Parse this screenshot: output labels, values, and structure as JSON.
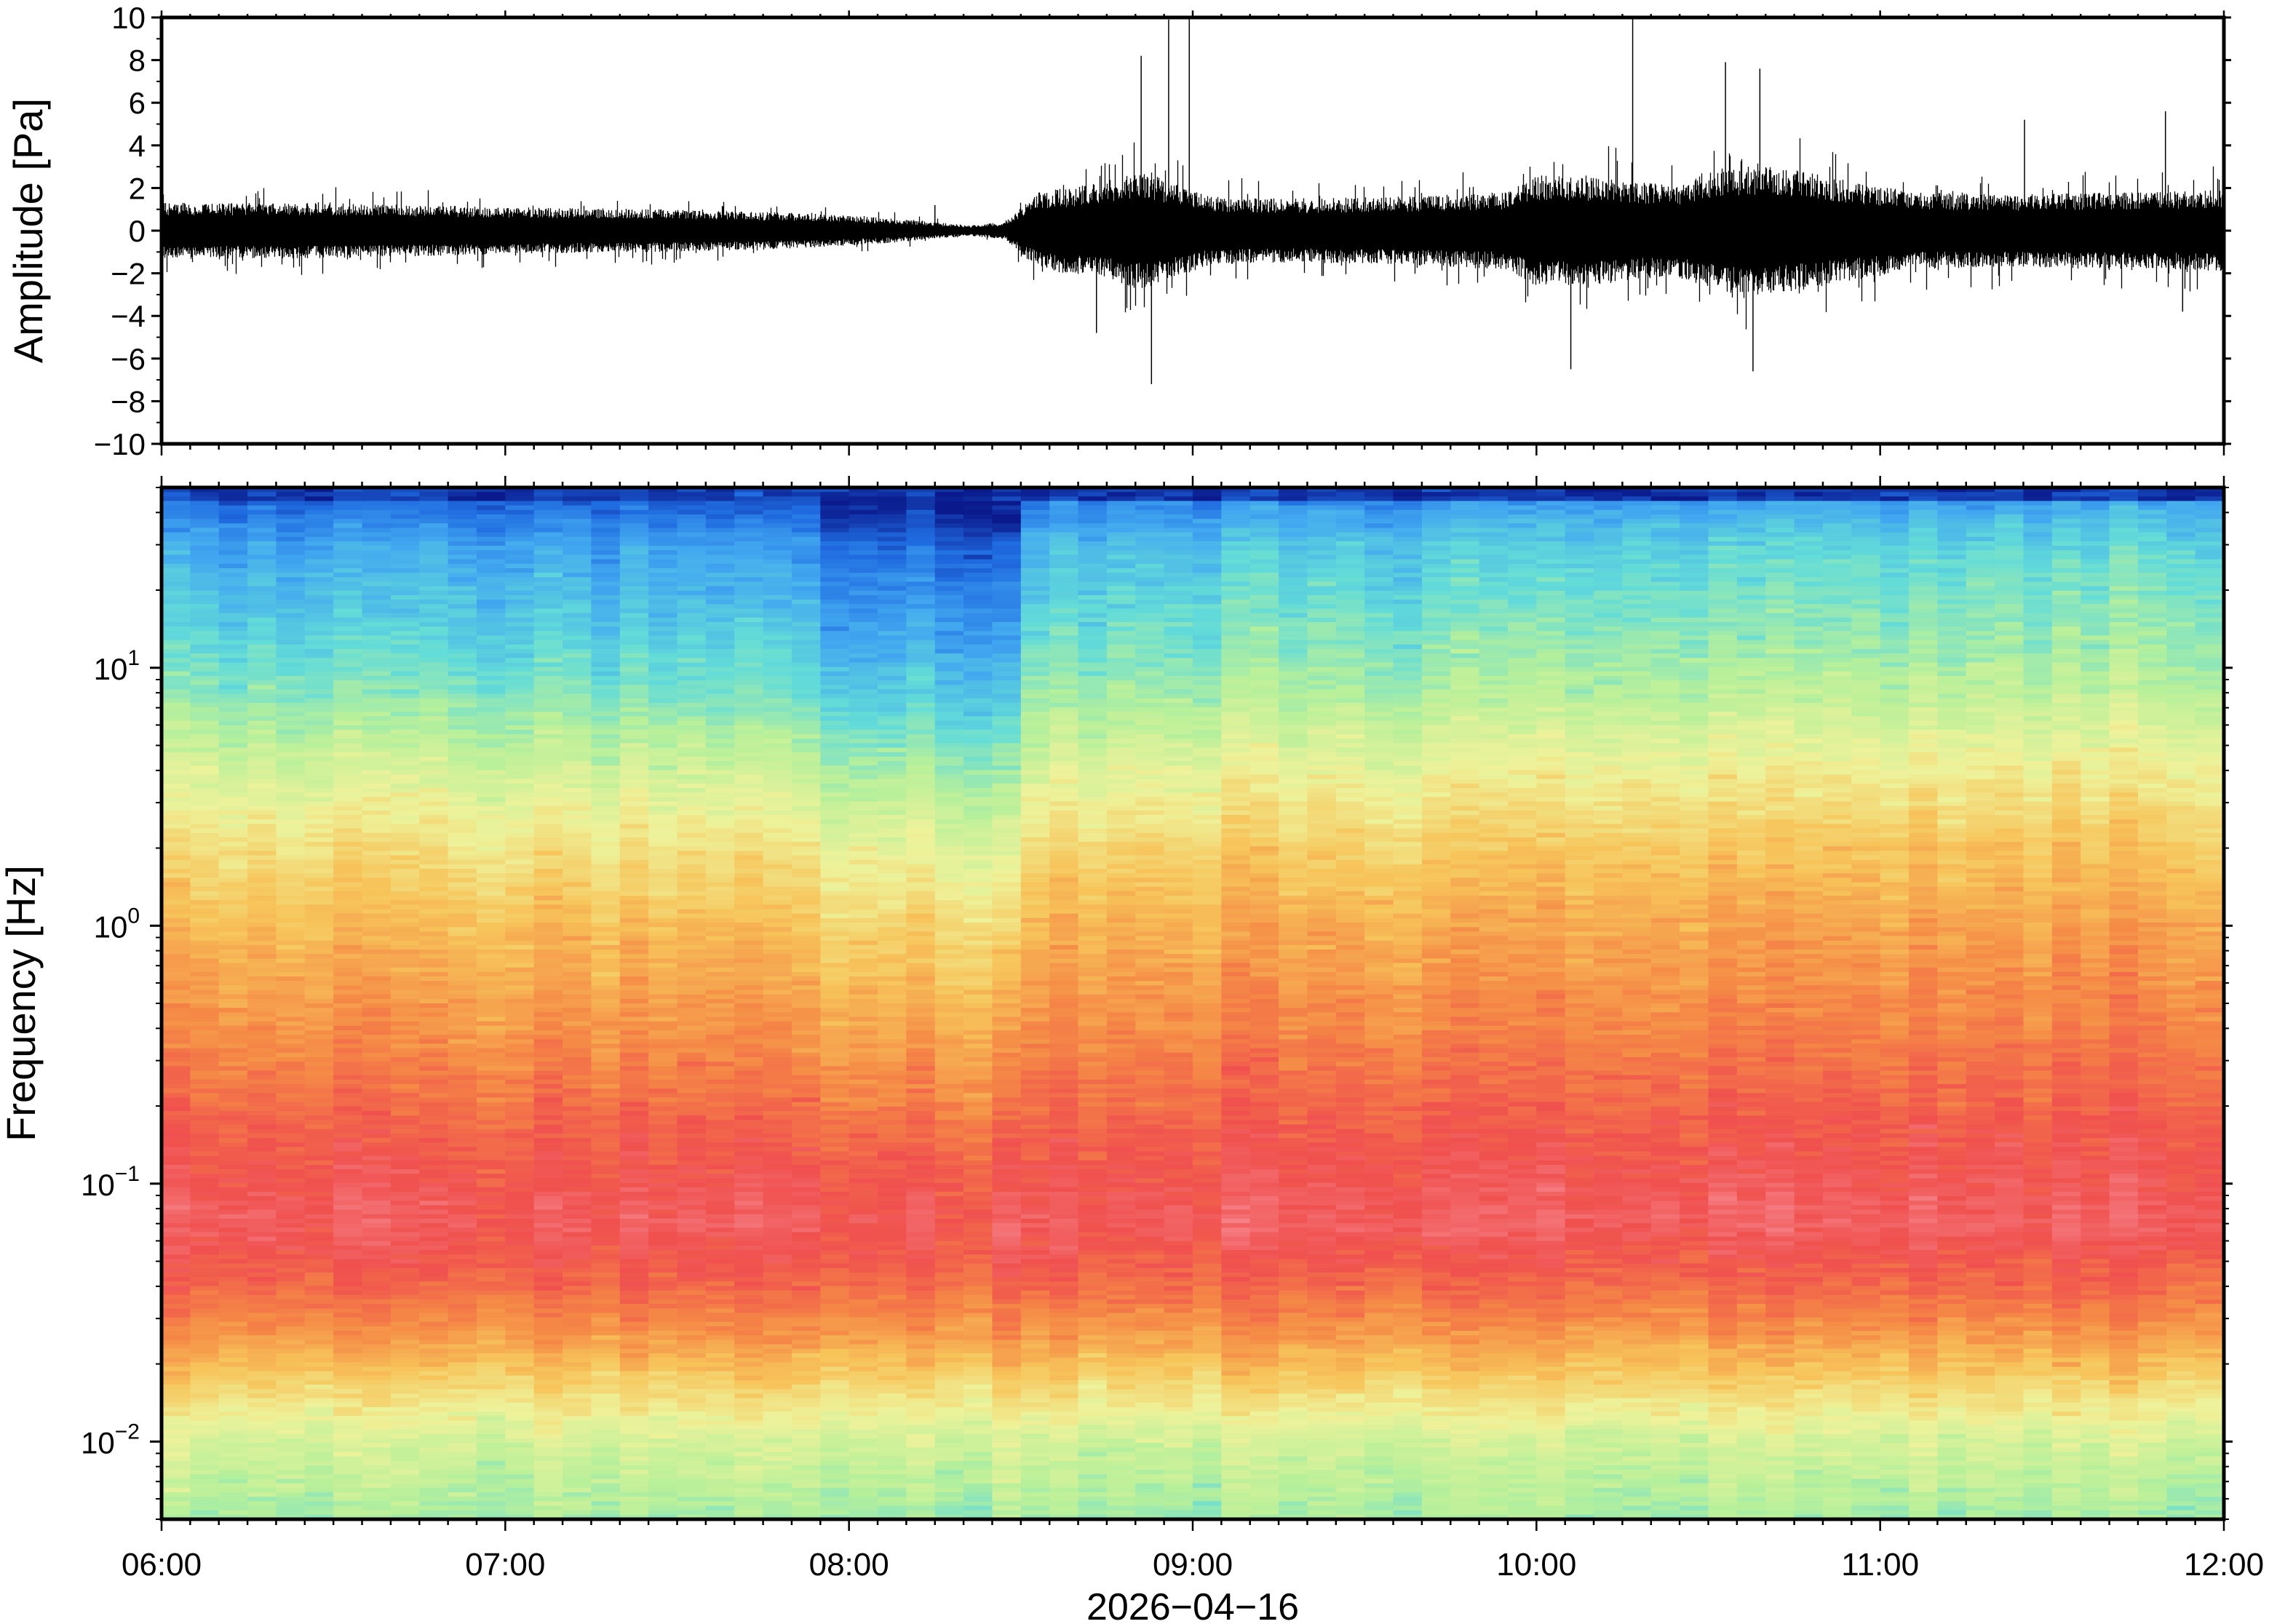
{
  "chart_data": [
    {
      "type": "line",
      "ylabel": "Amplitude [Pa]",
      "ylim": [
        -10,
        10
      ],
      "y_ticks": [
        10,
        8,
        6,
        4,
        2,
        0,
        -2,
        -4,
        -6,
        -8,
        -10
      ],
      "y_tick_labels": [
        "10",
        "8",
        "6",
        "4",
        "2",
        "0",
        "−2",
        "−4",
        "−6",
        "−8",
        "−10"
      ],
      "x_range_hours": [
        6,
        12
      ],
      "series": [
        {
          "envelope_time_hours": [
            6.0,
            6.5,
            7.0,
            7.5,
            7.9,
            8.1,
            8.35,
            8.45,
            8.55,
            8.75,
            8.85,
            8.95,
            9.05,
            9.3,
            9.6,
            9.9,
            10.0,
            10.2,
            10.4,
            10.55,
            10.7,
            10.9,
            11.1,
            11.4,
            11.7,
            12.0
          ],
          "envelope_amplitude_pa": [
            1.3,
            1.3,
            1.1,
            1.0,
            0.8,
            0.6,
            0.25,
            0.4,
            1.8,
            2.3,
            2.8,
            2.2,
            1.6,
            1.5,
            1.6,
            1.8,
            2.6,
            2.5,
            2.1,
            3.0,
            3.0,
            2.4,
            1.8,
            1.7,
            1.8,
            1.9
          ],
          "peaks": [
            {
              "t": 8.25,
              "a": 1.2
            },
            {
              "t": 8.85,
              "a": 8.2
            },
            {
              "t": 8.93,
              "a": 9.9
            },
            {
              "t": 8.99,
              "a": 10.0
            },
            {
              "t": 8.88,
              "a": -7.2
            },
            {
              "t": 8.72,
              "a": -4.8
            },
            {
              "t": 10.28,
              "a": 10.0
            },
            {
              "t": 10.1,
              "a": -6.5
            },
            {
              "t": 10.55,
              "a": 7.9
            },
            {
              "t": 10.65,
              "a": 7.6
            },
            {
              "t": 10.63,
              "a": -6.6
            },
            {
              "t": 11.42,
              "a": 5.2
            },
            {
              "t": 11.83,
              "a": 5.6
            },
            {
              "t": 11.88,
              "a": -3.8
            }
          ]
        }
      ]
    },
    {
      "type": "heatmap",
      "ylabel": "Frequency [Hz]",
      "yscale": "log",
      "ylim": [
        0.005,
        50
      ],
      "y_ticks": [
        {
          "value": 10,
          "base": "10",
          "exp": "1"
        },
        {
          "value": 1,
          "base": "10",
          "exp": "0"
        },
        {
          "value": 0.1,
          "base": "10",
          "exp": "−1"
        },
        {
          "value": 0.01,
          "base": "10",
          "exp": "−2"
        }
      ],
      "x_ticks": [
        6,
        7,
        8,
        9,
        10,
        11,
        12
      ],
      "x_tick_labels": [
        "06:00",
        "07:00",
        "08:00",
        "09:00",
        "10:00",
        "11:00",
        "12:00"
      ],
      "xlabel": "2026−04−16",
      "colormap": [
        "#0a1a8c",
        "#1f6be0",
        "#42a8f0",
        "#63dcd8",
        "#b8f09a",
        "#eef29a",
        "#f7c45a",
        "#f58a46",
        "#f0504e",
        "#f6848a"
      ],
      "time_columns": 72,
      "column_energy": [
        1.0,
        1.05,
        0.95,
        1.0,
        0.9,
        1.05,
        1.0,
        0.95,
        1.0,
        1.05,
        0.95,
        1.0,
        1.0,
        0.95,
        1.0,
        0.9,
        0.95,
        0.9,
        0.95,
        0.9,
        0.85,
        0.85,
        0.8,
        0.55,
        0.5,
        0.52,
        0.55,
        0.5,
        0.5,
        0.25,
        1.15,
        1.2,
        1.25,
        1.3,
        1.3,
        1.25,
        1.3,
        1.3,
        1.35,
        1.3,
        1.35,
        1.35,
        1.3,
        1.3,
        1.35,
        1.4,
        1.35,
        1.4,
        1.4,
        1.4,
        1.45,
        1.5,
        1.45,
        1.45,
        1.4,
        1.45,
        1.45,
        1.5,
        1.5,
        1.5,
        1.45,
        1.45,
        1.5,
        1.5,
        1.55,
        1.5,
        1.5,
        1.5,
        1.55,
        1.5,
        1.55,
        1.5
      ],
      "level_profile": [
        {
          "f": 50,
          "level": 0.0
        },
        {
          "f": 45,
          "level": 0.1
        },
        {
          "f": 30,
          "level": 0.22
        },
        {
          "f": 15,
          "level": 0.3
        },
        {
          "f": 8,
          "level": 0.38
        },
        {
          "f": 4,
          "level": 0.5
        },
        {
          "f": 2,
          "level": 0.6
        },
        {
          "f": 1,
          "level": 0.68
        },
        {
          "f": 0.4,
          "level": 0.76
        },
        {
          "f": 0.15,
          "level": 0.86
        },
        {
          "f": 0.07,
          "level": 0.92
        },
        {
          "f": 0.04,
          "level": 0.84
        },
        {
          "f": 0.025,
          "level": 0.74
        },
        {
          "f": 0.015,
          "level": 0.6
        },
        {
          "f": 0.01,
          "level": 0.5
        },
        {
          "f": 0.005,
          "level": 0.42
        }
      ]
    }
  ]
}
